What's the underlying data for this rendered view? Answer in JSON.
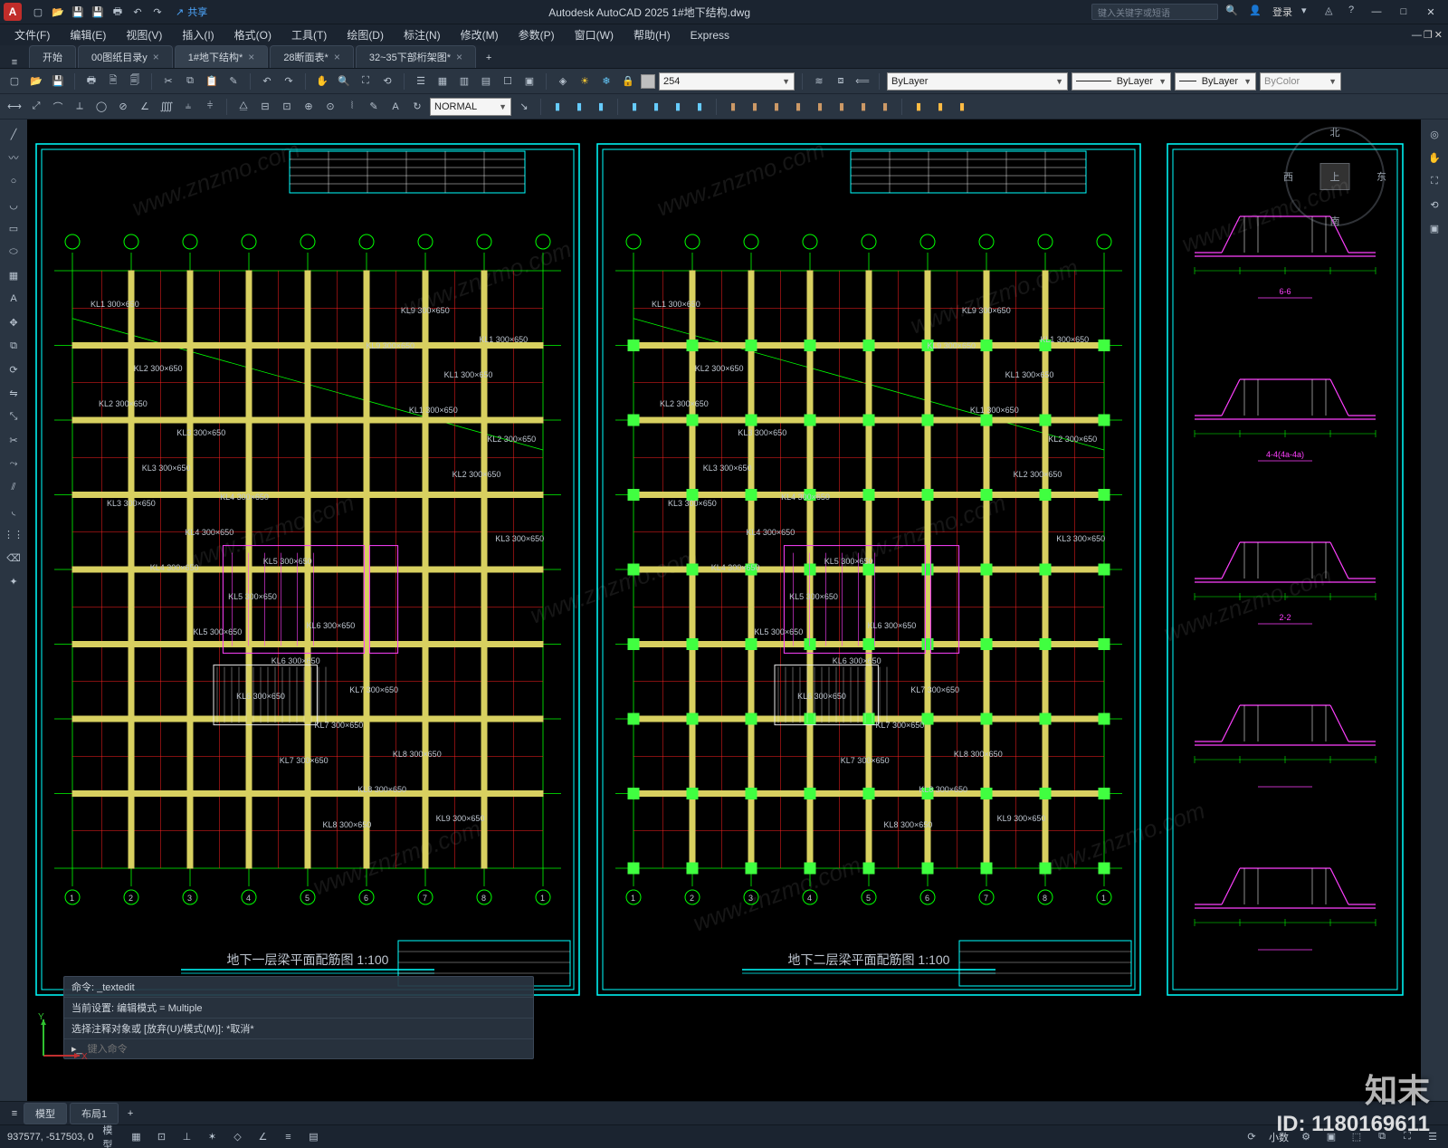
{
  "titlebar": {
    "app_title": "Autodesk AutoCAD 2025    1#地下结构.dwg",
    "share": "共享",
    "search_placeholder": "键入关键字或短语",
    "login": "登录",
    "logo_text": "A"
  },
  "menubar": {
    "items": [
      "文件(F)",
      "编辑(E)",
      "视图(V)",
      "插入(I)",
      "格式(O)",
      "工具(T)",
      "绘图(D)",
      "标注(N)",
      "修改(M)",
      "参数(P)",
      "窗口(W)",
      "帮助(H)",
      "Express"
    ]
  },
  "doctabs": {
    "items": [
      {
        "label": "开始",
        "active": false,
        "closable": false
      },
      {
        "label": "00图纸目录y",
        "active": false,
        "closable": true
      },
      {
        "label": "1#地下结构*",
        "active": true,
        "closable": true
      },
      {
        "label": "28断面表*",
        "active": false,
        "closable": true
      },
      {
        "label": "32~35下部桁架图*",
        "active": false,
        "closable": true
      }
    ]
  },
  "toolbar2": {
    "color_value": "254",
    "color_swatch": "#bfbfbf",
    "layer_text": "ByLayer",
    "linetype_text": "ByLayer",
    "lineweight_text": "ByLayer",
    "bycolor_text": "ByColor"
  },
  "toolbar3": {
    "style_value": "NORMAL"
  },
  "viewcube": {
    "n": "北",
    "s": "南",
    "e": "东",
    "w": "西",
    "top": "上"
  },
  "command": {
    "line1": "命令: _textedit",
    "line2": "当前设置: 编辑模式 = Multiple",
    "line3": "选择注释对象或 [放弃(U)/模式(M)]: *取消*",
    "prompt": "键入命令"
  },
  "btabs": {
    "model": "模型",
    "layout1": "布局1"
  },
  "status": {
    "coords": "937577, -517503, 0",
    "model": "模型",
    "decimal": "小数"
  },
  "drawing": {
    "background": "#000000",
    "colors": {
      "frame": "#00ffff",
      "grid_green": "#00ff00",
      "grid_red": "#ff2020",
      "beam_yellow": "#d8d060",
      "node_lime": "#40ff40",
      "magenta": "#ff40ff",
      "white": "#e8e8e8",
      "grey": "#808080",
      "title_underline": "#00ffff"
    },
    "titles": {
      "plan1": "地下一层梁平面配筋图 1:100",
      "plan2": "地下二层梁平面配筋图 1:100"
    },
    "sections": [
      "6-6",
      "4-4(4a-4a)",
      "2-2"
    ],
    "grid_labels": [
      "1",
      "2",
      "3",
      "4",
      "5",
      "6",
      "7",
      "8"
    ]
  },
  "watermark": {
    "brand": "知末",
    "id": "ID: 1180169611",
    "url": "www.znzmo.com"
  }
}
